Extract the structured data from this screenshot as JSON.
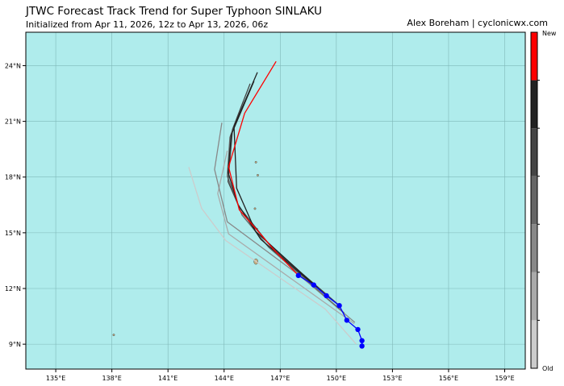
{
  "title": "JTWC Forecast Track Trend for Super Typhoon SINLAKU",
  "subtitle": "Initialized from Apr 11, 2026, 12z to Apr 13, 2026, 06z",
  "credit": "Alex Boreham | cyclonicwx.com",
  "chart_data": {
    "type": "map-tracks",
    "lon_range": [
      133.4,
      160.1
    ],
    "lat_range": [
      7.66,
      25.8
    ],
    "lon_ticks": [
      "135°E",
      "138°E",
      "141°E",
      "144°E",
      "147°E",
      "150°E",
      "153°E",
      "156°E",
      "159°E"
    ],
    "lon_tick_values": [
      135,
      138,
      141,
      144,
      147,
      150,
      153,
      156,
      159
    ],
    "lat_ticks": [
      "9°N",
      "12°N",
      "15°N",
      "18°N",
      "21°N",
      "24°N"
    ],
    "lat_tick_values": [
      9,
      12,
      15,
      18,
      21,
      24
    ],
    "grid": true,
    "ocean_color": "#afecec",
    "observed_track": {
      "color": "#0000ff",
      "points": [
        [
          147.97,
          12.7
        ],
        [
          148.79,
          12.19
        ],
        [
          149.47,
          11.61
        ],
        [
          150.16,
          11.08
        ],
        [
          150.56,
          10.29
        ],
        [
          151.15,
          9.79
        ],
        [
          151.37,
          9.19
        ],
        [
          151.37,
          8.9
        ]
      ]
    },
    "forecast_tracks": [
      {
        "color": "#cccccc",
        "points": [
          [
            151.06,
            9.01
          ],
          [
            149.41,
            10.89
          ],
          [
            144.09,
            14.58
          ],
          [
            142.8,
            16.31
          ],
          [
            142.11,
            18.54
          ]
        ]
      },
      {
        "color": "#aaaaaa",
        "points": [
          [
            150.96,
            10.1
          ],
          [
            144.24,
            14.94
          ],
          [
            143.66,
            17.11
          ],
          [
            144.17,
            19.42
          ]
        ]
      },
      {
        "color": "#888888",
        "points": [
          [
            150.99,
            10.17
          ],
          [
            148.12,
            12.63
          ],
          [
            144.17,
            15.59
          ],
          [
            143.49,
            18.41
          ],
          [
            143.88,
            20.93
          ]
        ]
      },
      {
        "color": "#666666",
        "points": [
          [
            150.42,
            10.68
          ],
          [
            146.39,
            14.21
          ],
          [
            144.96,
            15.95
          ],
          [
            144.17,
            18.05
          ],
          [
            144.31,
            20.14
          ],
          [
            145.03,
            22.09
          ]
        ]
      },
      {
        "color": "#444444",
        "points": [
          [
            150.13,
            11.11
          ],
          [
            146.54,
            14.21
          ],
          [
            144.81,
            16.38
          ],
          [
            144.21,
            17.76
          ],
          [
            144.45,
            20.57
          ],
          [
            145.39,
            23.03
          ]
        ]
      },
      {
        "color": "#222222",
        "points": [
          [
            149.47,
            11.61
          ],
          [
            145.68,
            15.08
          ],
          [
            144.67,
            17.4
          ],
          [
            144.53,
            20.72
          ],
          [
            145.78,
            23.64
          ]
        ]
      },
      {
        "color": "#222222",
        "points": [
          [
            148.79,
            12.19
          ],
          [
            145.96,
            14.65
          ],
          [
            144.74,
            16.53
          ],
          [
            144.21,
            18.26
          ],
          [
            144.38,
            20.28
          ],
          [
            145.6,
            23.17
          ]
        ]
      },
      {
        "color": "#ff0000",
        "points": [
          [
            147.97,
            12.7
          ],
          [
            146.68,
            14.07
          ],
          [
            145.82,
            15.08
          ],
          [
            144.81,
            16.24
          ],
          [
            144.24,
            18.55
          ],
          [
            145.1,
            21.44
          ],
          [
            146.78,
            24.23
          ]
        ]
      }
    ],
    "colorbar": {
      "colors": [
        "#ff0000",
        "#222222",
        "#444444",
        "#666666",
        "#888888",
        "#aaaaaa",
        "#cccccc"
      ],
      "top_label": "New",
      "bottom_label": "Old"
    }
  }
}
